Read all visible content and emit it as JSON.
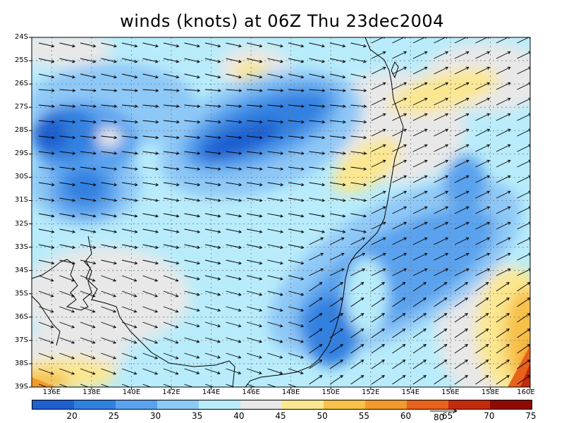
{
  "title": "winds (knots) at 06Z Thu 23dec2004",
  "lat_labels": [
    "24S",
    "25S",
    "26S",
    "27S",
    "28S",
    "29S",
    "30S",
    "31S",
    "32S",
    "33S",
    "34S",
    "35S",
    "36S",
    "37S",
    "38S",
    "39S"
  ],
  "lon_labels": [
    "136E",
    "138E",
    "140E",
    "142E",
    "144E",
    "146E",
    "148E",
    "150E",
    "152E",
    "154E",
    "156E",
    "158E",
    "160E"
  ],
  "colorbar": {
    "colors": [
      "#1f5fd0",
      "#3080e0",
      "#5aa2ee",
      "#8ec8f7",
      "#b8ecfb",
      "#e8e8e8",
      "#fbe790",
      "#f7c14a",
      "#f39a2c",
      "#e8621c",
      "#c42a0c",
      "#8f0a00"
    ],
    "labels": [
      "20",
      "25",
      "30",
      "35",
      "40",
      "45",
      "50",
      "55",
      "60",
      "65",
      "70",
      "75"
    ]
  },
  "vector_reference": {
    "label": "80"
  },
  "icons": {
    "coastline": "coastline-outline",
    "wind-arrow": "wind-vector-arrow"
  }
}
